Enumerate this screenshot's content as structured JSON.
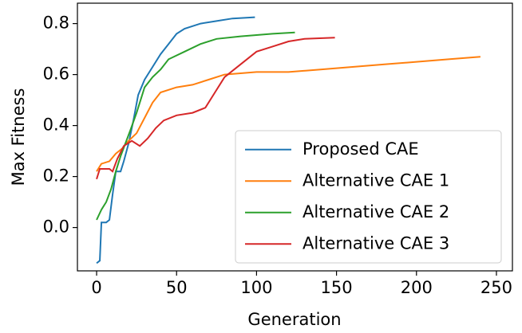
{
  "chart_data": {
    "type": "line",
    "xlabel": "Generation",
    "ylabel": "Max Fitness",
    "xlim": [
      -12,
      260
    ],
    "ylim": [
      -0.17,
      0.88
    ],
    "xticks": [
      0,
      50,
      100,
      150,
      200,
      250
    ],
    "yticks": [
      {
        "value": 0,
        "label": "0.0"
      },
      0.2,
      0.4,
      0.6,
      0.8
    ],
    "legend": "lower right",
    "series": [
      {
        "name": "Proposed CAE",
        "color": "#1f77b4",
        "x": [
          0,
          2,
          3,
          6,
          8,
          10,
          12,
          15,
          17,
          20,
          23,
          26,
          30,
          35,
          40,
          45,
          50,
          55,
          60,
          65,
          75,
          85,
          99
        ],
        "values": [
          -0.14,
          -0.13,
          0.02,
          0.02,
          0.03,
          0.13,
          0.22,
          0.22,
          0.26,
          0.33,
          0.42,
          0.52,
          0.58,
          0.63,
          0.68,
          0.72,
          0.76,
          0.78,
          0.79,
          0.8,
          0.81,
          0.82,
          0.825
        ]
      },
      {
        "name": "Alternative CAE 1",
        "color": "#ff7f0e",
        "x": [
          0,
          3,
          8,
          12,
          16,
          20,
          25,
          30,
          35,
          40,
          50,
          60,
          70,
          80,
          100,
          120,
          140,
          160,
          180,
          200,
          220,
          240
        ],
        "values": [
          0.22,
          0.25,
          0.26,
          0.29,
          0.31,
          0.34,
          0.37,
          0.43,
          0.49,
          0.53,
          0.55,
          0.56,
          0.58,
          0.6,
          0.61,
          0.61,
          0.62,
          0.63,
          0.64,
          0.65,
          0.66,
          0.67
        ]
      },
      {
        "name": "Alternative CAE 2",
        "color": "#2ca02c",
        "x": [
          0,
          3,
          6,
          9,
          12,
          15,
          18,
          21,
          25,
          30,
          35,
          40,
          45,
          55,
          65,
          75,
          90,
          110,
          124
        ],
        "values": [
          0.03,
          0.07,
          0.1,
          0.15,
          0.22,
          0.28,
          0.33,
          0.38,
          0.45,
          0.55,
          0.59,
          0.62,
          0.66,
          0.69,
          0.72,
          0.74,
          0.75,
          0.76,
          0.765
        ]
      },
      {
        "name": "Alternative CAE 3",
        "color": "#d62728",
        "x": [
          0,
          2,
          8,
          10,
          13,
          17,
          22,
          27,
          32,
          37,
          42,
          50,
          60,
          68,
          74,
          80,
          90,
          100,
          110,
          120,
          130,
          149
        ],
        "values": [
          0.19,
          0.23,
          0.23,
          0.22,
          0.27,
          0.32,
          0.34,
          0.32,
          0.35,
          0.39,
          0.42,
          0.44,
          0.45,
          0.47,
          0.53,
          0.59,
          0.64,
          0.69,
          0.71,
          0.73,
          0.74,
          0.745
        ]
      }
    ]
  }
}
